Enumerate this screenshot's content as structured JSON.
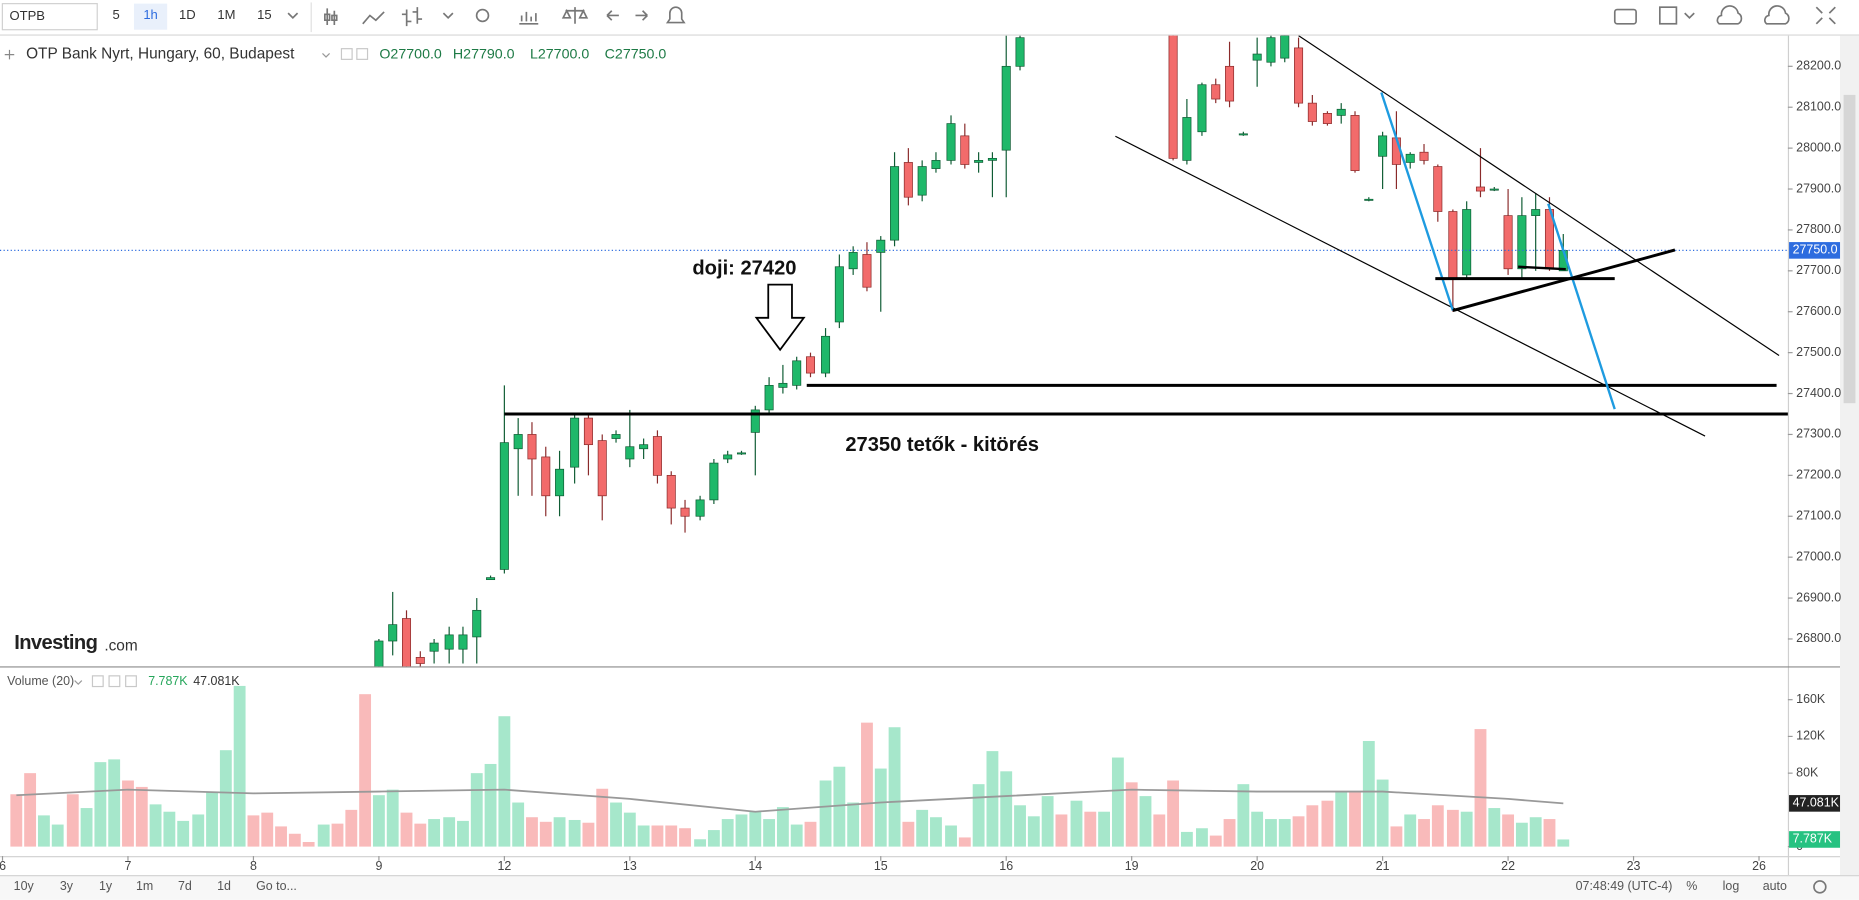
{
  "toolbar": {
    "symbol": "OTPB",
    "intervals": [
      "5",
      "1h",
      "1D",
      "1M",
      "15"
    ]
  },
  "bottom_bar": {
    "ranges": [
      "10y",
      "3y",
      "1y",
      "1m",
      "7d",
      "1d"
    ],
    "goto": "Go to...",
    "time": "07:48:49 (UTC-4)",
    "options": [
      "%",
      "log",
      "auto"
    ]
  },
  "chart_data": {
    "type": "candlestick",
    "title": "OTP Bank Nyrt, Hungary, 60, Budapest",
    "ohlc_labels": [
      "O27700.0",
      "H27790.0",
      "L27700.0",
      "C27750.0"
    ],
    "brand": [
      "Investing",
      ".com"
    ],
    "up_color": "#1fb86a",
    "down_color": "#f26b6b",
    "up_border": "#0f5c34",
    "down_border": "#8a2a2a",
    "grid": false,
    "xlim": [
      -0.02,
      14.23
    ],
    "xticks": [
      {
        "value": 0,
        "label": "6"
      },
      {
        "value": 1,
        "label": "7"
      },
      {
        "value": 2,
        "label": "8"
      },
      {
        "value": 3,
        "label": "9"
      },
      {
        "value": 4,
        "label": "12"
      },
      {
        "value": 5,
        "label": "13"
      },
      {
        "value": 6,
        "label": "14"
      },
      {
        "value": 7,
        "label": "15"
      },
      {
        "value": 8,
        "label": "16"
      },
      {
        "value": 9,
        "label": "19"
      },
      {
        "value": 10,
        "label": "20"
      },
      {
        "value": 11,
        "label": "21"
      },
      {
        "value": 12,
        "label": "22"
      },
      {
        "value": 13,
        "label": "23"
      },
      {
        "value": 14,
        "label": "26"
      }
    ],
    "ylim": [
      26733,
      28275
    ],
    "yticks": [
      {
        "value": 26800,
        "label": "26800.0"
      },
      {
        "value": 26900,
        "label": "26900.0"
      },
      {
        "value": 27000,
        "label": "27000.0"
      },
      {
        "value": 27100,
        "label": "27100.0"
      },
      {
        "value": 27200,
        "label": "27200.0"
      },
      {
        "value": 27300,
        "label": "27300.0"
      },
      {
        "value": 27400,
        "label": "27400.0"
      },
      {
        "value": 27500,
        "label": "27500.0"
      },
      {
        "value": 27600,
        "label": "27600.0"
      },
      {
        "value": 27700,
        "label": "27700.0"
      },
      {
        "value": 27800,
        "label": "27800.0"
      },
      {
        "value": 27900,
        "label": "27900.0"
      },
      {
        "value": 28000,
        "label": "28000.0"
      },
      {
        "value": 28100,
        "label": "28100.0"
      },
      {
        "value": 28200,
        "label": "28200.0"
      }
    ],
    "last_price": {
      "value": 27750,
      "label": "27750.0",
      "color": "#2d6cdf"
    },
    "candles": {
      "x": [
        3,
        3.11,
        3.22,
        3.33,
        3.44,
        3.56,
        3.67,
        3.78,
        3.89,
        4,
        4.11,
        4.22,
        4.33,
        4.44,
        4.56,
        4.67,
        4.78,
        4.89,
        5,
        5.11,
        5.22,
        5.33,
        5.44,
        5.56,
        5.67,
        5.78,
        5.89,
        6,
        6.11,
        6.22,
        6.33,
        6.44,
        6.56,
        6.67,
        6.78,
        6.89,
        7,
        7.11,
        7.22,
        7.33,
        7.44,
        7.56,
        7.67,
        7.78,
        7.89,
        8,
        8.11,
        9.33,
        9.44,
        9.56,
        9.67,
        9.78,
        9.89,
        10,
        10.11,
        10.22,
        10.33,
        10.44,
        10.56,
        10.67,
        10.78,
        10.89,
        11,
        11.11,
        11.22,
        11.33,
        11.44,
        11.56,
        11.67,
        11.78,
        11.89,
        12,
        12.11,
        12.22,
        12.33,
        12.44
      ],
      "open": [
        26720,
        26795,
        26850,
        26755,
        26770,
        26775,
        26775,
        26805,
        26945,
        26970,
        27265,
        27300,
        27245,
        27150,
        27220,
        27340,
        27285,
        27290,
        27240,
        27265,
        27295,
        27200,
        27120,
        27100,
        27140,
        27240,
        27255,
        27305,
        27360,
        27415,
        27420,
        27490,
        27450,
        27575,
        27705,
        27740,
        27745,
        27775,
        27965,
        27885,
        27950,
        27970,
        28030,
        27965,
        27970,
        27995,
        28200,
        28280,
        27970,
        28040,
        28155,
        28200,
        28035,
        28215,
        28210,
        28220,
        28245,
        28110,
        28085,
        28080,
        28080,
        27875,
        27980,
        28025,
        27965,
        27990,
        27955,
        27845,
        27690,
        27905,
        27900,
        27835,
        27705,
        27835,
        27850,
        27700
      ],
      "high": [
        26800,
        26915,
        26870,
        26770,
        26800,
        26830,
        26830,
        26900,
        26955,
        27420,
        27340,
        27330,
        27270,
        27260,
        27350,
        27350,
        27300,
        27310,
        27360,
        27290,
        27310,
        27210,
        27140,
        27150,
        27240,
        27260,
        27260,
        27370,
        27440,
        27470,
        27490,
        27500,
        27560,
        27740,
        27760,
        27770,
        27785,
        27990,
        28000,
        27970,
        27990,
        28080,
        28060,
        27990,
        27990,
        28275,
        28275,
        28290,
        28120,
        28160,
        28170,
        28260,
        28040,
        28270,
        28275,
        28275,
        28270,
        28130,
        28090,
        28110,
        28090,
        27880,
        28040,
        28090,
        27990,
        28010,
        27960,
        27850,
        27870,
        28000,
        27905,
        27900,
        27880,
        27890,
        27880,
        27790
      ],
      "low": [
        26700,
        26760,
        26700,
        26720,
        26740,
        26740,
        26740,
        26740,
        26945,
        26960,
        27150,
        27150,
        27100,
        27100,
        27180,
        27200,
        27090,
        27280,
        27220,
        27240,
        27180,
        27080,
        27060,
        27090,
        27130,
        27230,
        27250,
        27200,
        27350,
        27400,
        27410,
        27440,
        27440,
        27560,
        27690,
        27650,
        27600,
        27760,
        27860,
        27870,
        27940,
        27960,
        27950,
        27940,
        27880,
        27880,
        28190,
        27970,
        27960,
        28030,
        28110,
        28100,
        28030,
        28150,
        28200,
        28210,
        28100,
        28055,
        28055,
        28060,
        27940,
        27870,
        27900,
        27900,
        27950,
        27960,
        27820,
        27600,
        27680,
        27880,
        27895,
        27690,
        27680,
        27700,
        27700,
        27700
      ],
      "close": [
        26795,
        26835,
        26730,
        26740,
        26790,
        26810,
        26810,
        26870,
        26950,
        27280,
        27300,
        27240,
        27150,
        27215,
        27340,
        27275,
        27150,
        27300,
        27270,
        27275,
        27200,
        27120,
        27100,
        27140,
        27230,
        27250,
        27255,
        27360,
        27420,
        27425,
        27480,
        27450,
        27540,
        27710,
        27745,
        27660,
        27775,
        27955,
        27880,
        27955,
        27970,
        28060,
        27960,
        27970,
        27975,
        28200,
        28270,
        27975,
        28075,
        28155,
        28120,
        28115,
        28035,
        28230,
        28270,
        28275,
        28110,
        28065,
        28060,
        28095,
        27945,
        27875,
        28030,
        27960,
        27985,
        27970,
        27845,
        27680,
        27850,
        27895,
        27900,
        27705,
        27835,
        27850,
        27705,
        27750
      ]
    },
    "volume": {
      "name": "Volume (20)",
      "last_label": "7.787K",
      "last_color": "#26c281",
      "ylim": [
        -10300,
        195000
      ],
      "yticks": [
        0,
        {
          "value": 80000,
          "label": "80K"
        },
        {
          "value": 120000,
          "label": "120K"
        },
        {
          "value": 160000,
          "label": "160K"
        }
      ],
      "x": [
        0.11,
        0.22,
        0.33,
        0.44,
        0.56,
        0.67,
        0.78,
        0.89,
        1,
        1.11,
        1.22,
        1.33,
        1.44,
        1.56,
        1.67,
        1.78,
        1.89,
        2,
        2.11,
        2.22,
        2.33,
        2.44,
        2.56,
        2.67,
        2.78,
        2.89,
        3,
        3.11,
        3.22,
        3.33,
        3.44,
        3.56,
        3.67,
        3.78,
        3.89,
        4,
        4.11,
        4.22,
        4.33,
        4.44,
        4.56,
        4.67,
        4.78,
        4.89,
        5,
        5.11,
        5.22,
        5.33,
        5.44,
        5.56,
        5.67,
        5.78,
        5.89,
        6,
        6.11,
        6.22,
        6.33,
        6.44,
        6.56,
        6.67,
        6.78,
        6.89,
        7,
        7.11,
        7.22,
        7.33,
        7.44,
        7.56,
        7.67,
        7.78,
        7.89,
        8,
        8.11,
        8.22,
        8.33,
        8.44,
        8.56,
        8.67,
        8.78,
        8.89,
        9,
        9.11,
        9.22,
        9.33,
        9.44,
        9.56,
        9.67,
        9.78,
        9.89,
        10,
        10.11,
        10.22,
        10.33,
        10.44,
        10.56,
        10.67,
        10.78,
        10.89,
        11,
        11.11,
        11.22,
        11.33,
        11.44,
        11.56,
        11.67,
        11.78,
        11.89,
        12,
        12.11,
        12.22,
        12.33,
        12.44
      ],
      "values": [
        57000,
        80000,
        34000,
        24000,
        57000,
        42000,
        92000,
        95000,
        72000,
        65000,
        46000,
        38000,
        28000,
        35000,
        59000,
        105000,
        175000,
        34000,
        37000,
        22000,
        14000,
        5000,
        24000,
        25000,
        40000,
        166000,
        56000,
        62000,
        37000,
        25000,
        30000,
        32000,
        28000,
        80000,
        90000,
        142000,
        48000,
        32000,
        27000,
        32000,
        29000,
        26000,
        63000,
        48000,
        37000,
        23000,
        23000,
        23000,
        20000,
        8000,
        18000,
        30000,
        35000,
        38000,
        30000,
        43000,
        24000,
        27000,
        72000,
        87000,
        48000,
        135000,
        85000,
        130000,
        27000,
        40000,
        32000,
        23000,
        10000,
        68000,
        104000,
        82000,
        45000,
        33000,
        55000,
        35000,
        50000,
        38000,
        38000,
        97000,
        70000,
        55000,
        35000,
        72000,
        16000,
        20000,
        12000,
        30000,
        68000,
        38000,
        30000,
        30000,
        33000,
        45000,
        50000,
        60000,
        60000,
        115000,
        73000,
        22000,
        35000,
        30000,
        45000,
        40000,
        38000,
        128000,
        42000,
        35000,
        26000,
        32000,
        30000,
        7787
      ],
      "colors": [
        "#f9baba",
        "#f9baba",
        "#a6e7cb",
        "#a6e7cb",
        "#f9baba",
        "#a6e7cb",
        "#a6e7cb",
        "#a6e7cb",
        "#f9baba",
        "#f9baba",
        "#a6e7cb",
        "#a6e7cb",
        "#a6e7cb",
        "#a6e7cb",
        "#a6e7cb",
        "#a6e7cb",
        "#a6e7cb",
        "#f9baba",
        "#f9baba",
        "#f9baba",
        "#f9baba",
        "#f9baba",
        "#a6e7cb",
        "#f9baba",
        "#f9baba",
        "#f9baba",
        "#a6e7cb",
        "#a6e7cb",
        "#f9baba",
        "#f9baba",
        "#a6e7cb",
        "#a6e7cb",
        "#a6e7cb",
        "#a6e7cb",
        "#a6e7cb",
        "#a6e7cb",
        "#a6e7cb",
        "#f9baba",
        "#f9baba",
        "#a6e7cb",
        "#a6e7cb",
        "#f9baba",
        "#f9baba",
        "#a6e7cb",
        "#a6e7cb",
        "#a6e7cb",
        "#f9baba",
        "#f9baba",
        "#f9baba",
        "#a6e7cb",
        "#a6e7cb",
        "#a6e7cb",
        "#a6e7cb",
        "#a6e7cb",
        "#a6e7cb",
        "#a6e7cb",
        "#a6e7cb",
        "#f9baba",
        "#a6e7cb",
        "#a6e7cb",
        "#a6e7cb",
        "#f9baba",
        "#a6e7cb",
        "#a6e7cb",
        "#f9baba",
        "#a6e7cb",
        "#a6e7cb",
        "#a6e7cb",
        "#f9baba",
        "#a6e7cb",
        "#a6e7cb",
        "#a6e7cb",
        "#a6e7cb",
        "#a6e7cb",
        "#a6e7cb",
        "#f9baba",
        "#a6e7cb",
        "#f9baba",
        "#a6e7cb",
        "#a6e7cb",
        "#f9baba",
        "#a6e7cb",
        "#f9baba",
        "#f9baba",
        "#a6e7cb",
        "#a6e7cb",
        "#f9baba",
        "#f9baba",
        "#a6e7cb",
        "#a6e7cb",
        "#a6e7cb",
        "#a6e7cb",
        "#f9baba",
        "#f9baba",
        "#f9baba",
        "#a6e7cb",
        "#f9baba",
        "#a6e7cb",
        "#a6e7cb",
        "#f9baba",
        "#a6e7cb",
        "#f9baba",
        "#f9baba",
        "#f9baba",
        "#a6e7cb",
        "#f9baba",
        "#a6e7cb",
        "#f9baba",
        "#a6e7cb",
        "#a6e7cb",
        "#f9baba",
        "#a6e7cb"
      ],
      "ma": {
        "color": "#999999",
        "last_label": "47.081K",
        "x": [
          0.11,
          1,
          2,
          3,
          4,
          5,
          6,
          7,
          8,
          9,
          10,
          11,
          12,
          12.44
        ],
        "values": [
          56000,
          62000,
          58000,
          60000,
          62000,
          52000,
          38000,
          48000,
          55000,
          62000,
          60000,
          60000,
          52000,
          47081
        ]
      }
    },
    "drawings": [
      {
        "x": [
          4.0,
          14.3
        ],
        "y": [
          27350,
          27350
        ],
        "color": "#000000",
        "width": 2.5
      },
      {
        "x": [
          6.41,
          14.14
        ],
        "y": [
          27420,
          27420
        ],
        "color": "#000000",
        "width": 2.5
      },
      {
        "x": [
          8.87,
          13.57
        ],
        "y": [
          28029,
          27296
        ],
        "color": "#000000",
        "width": 1
      },
      {
        "x": [
          10.33,
          14.16
        ],
        "y": [
          28275,
          27493
        ],
        "color": "#000000",
        "width": 1
      },
      {
        "x": [
          10.99,
          11.56
        ],
        "y": [
          28136,
          27603
        ],
        "color": "#1e9be0",
        "width": 2
      },
      {
        "x": [
          12.32,
          12.85
        ],
        "y": [
          27864,
          27362
        ],
        "color": "#1e9be0",
        "width": 2
      },
      {
        "x": [
          11.56,
          13.33
        ],
        "y": [
          27603,
          27751
        ],
        "color": "#000000",
        "width": 2.5
      },
      {
        "x": [
          11.42,
          12.85
        ],
        "y": [
          27681,
          27681
        ],
        "color": "#000000",
        "width": 2.5
      },
      {
        "x": [
          12.08,
          12.46
        ],
        "y": [
          27710,
          27704
        ],
        "color": "#000000",
        "width": 2
      }
    ],
    "annotations": [
      "doji: 27420",
      "27350 tetők - kitörés"
    ]
  }
}
